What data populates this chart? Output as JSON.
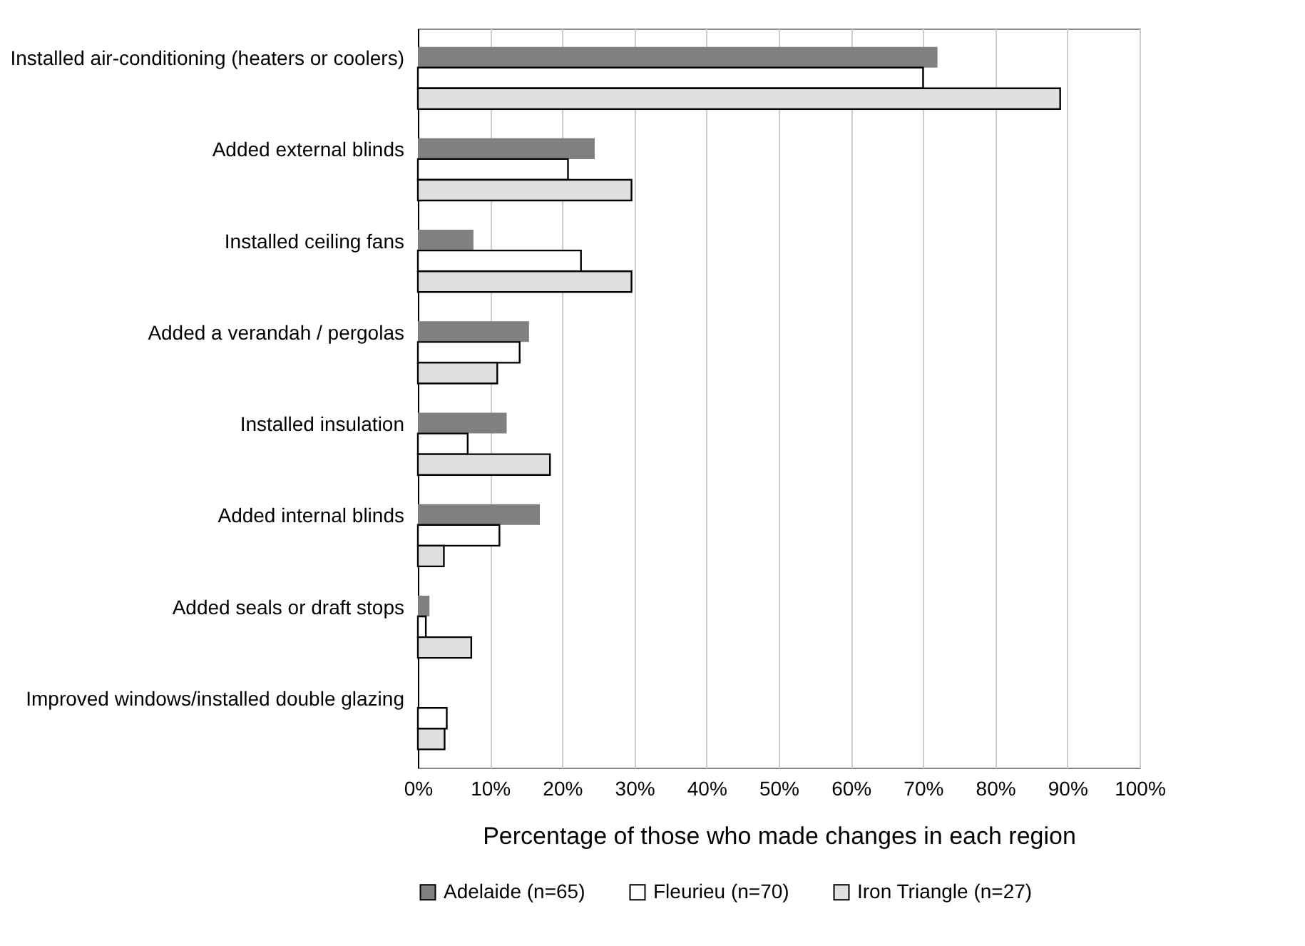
{
  "chart_data": {
    "type": "bar",
    "orientation": "horizontal",
    "xlabel": "Percentage of those who made changes in each region",
    "categories": [
      "Installed air-conditioning (heaters or coolers)",
      "Added external blinds",
      "Installed ceiling fans",
      "Added a verandah / pergolas",
      "Installed insulation",
      "Added internal blinds",
      "Added seals or draft stops",
      "Improved windows/installed double glazing"
    ],
    "series": [
      {
        "name": "Adelaide (n=65)",
        "color": "#808080",
        "values": [
          72,
          24.5,
          7.7,
          15.4,
          12.3,
          16.9,
          1.6,
          0
        ]
      },
      {
        "name": "Fleurieu (n=70)",
        "color": "#ffffff",
        "values": [
          70,
          20.8,
          22.6,
          14.1,
          6.9,
          11.3,
          1.1,
          4
        ]
      },
      {
        "name": "Iron Triangle (n=27)",
        "color": "#e0e0e0",
        "values": [
          89,
          29.6,
          29.6,
          11,
          18.3,
          3.6,
          7.4,
          3.7
        ]
      }
    ],
    "xlim": [
      0,
      100
    ],
    "xticks": [
      {
        "value": 0,
        "label": "0%"
      },
      {
        "value": 10,
        "label": "10%"
      },
      {
        "value": 20,
        "label": "20%"
      },
      {
        "value": 30,
        "label": "30%"
      },
      {
        "value": 40,
        "label": "40%"
      },
      {
        "value": 50,
        "label": "50%"
      },
      {
        "value": 60,
        "label": "60%"
      },
      {
        "value": 70,
        "label": "70%"
      },
      {
        "value": 80,
        "label": "80%"
      },
      {
        "value": 90,
        "label": "90%"
      },
      {
        "value": 100,
        "label": "100%"
      }
    ],
    "grid": "x",
    "legend": "bottom"
  }
}
